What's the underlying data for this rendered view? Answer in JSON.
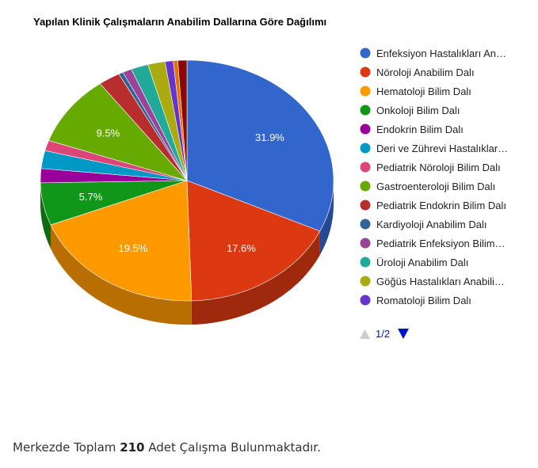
{
  "chart_data": {
    "type": "pie",
    "title": "Yapılan Klinik Çalışmaların Anabilim Dallarına Göre Dağılımı",
    "is3d": true,
    "legend_position": "right",
    "slices": [
      {
        "label": "Enfeksiyon Hastalıkları An…",
        "value": 31.9,
        "color": "#3366cc",
        "data_label": "31.9%"
      },
      {
        "label": "Nöroloji Anabilim Dalı",
        "value": 17.6,
        "color": "#dc3912",
        "data_label": "17.6%"
      },
      {
        "label": "Hematoloji Bilim Dalı",
        "value": 19.5,
        "color": "#ff9900",
        "data_label": "19.5%"
      },
      {
        "label": "Onkoloji Bilim Dalı",
        "value": 5.7,
        "color": "#109618",
        "data_label": "5.7%"
      },
      {
        "label": "Endokrin Bilim Dalı",
        "value": 1.9,
        "color": "#990099",
        "data_label": ""
      },
      {
        "label": "Deri ve Zührevi Hastalıklar…",
        "value": 2.4,
        "color": "#0099c6",
        "data_label": ""
      },
      {
        "label": "Pediatrik Nöroloji Bilim Dalı",
        "value": 1.4,
        "color": "#dd4477",
        "data_label": ""
      },
      {
        "label": "Gastroenteroloji Bilim Dalı",
        "value": 9.5,
        "color": "#66aa00",
        "data_label": "9.5%"
      },
      {
        "label": "Pediatrik Endokrin Bilim Dalı",
        "value": 2.4,
        "color": "#b82e2e",
        "data_label": ""
      },
      {
        "label": "Kardiyoloji Anabilim Dalı",
        "value": 0.5,
        "color": "#316395",
        "data_label": ""
      },
      {
        "label": "Pediatrik Enfeksiyon Bilim…",
        "value": 1.0,
        "color": "#994499",
        "data_label": ""
      },
      {
        "label": "Üroloji Anabilim Dalı",
        "value": 1.9,
        "color": "#22aa99",
        "data_label": ""
      },
      {
        "label": "Göğüs Hastalıkları Anabili…",
        "value": 1.9,
        "color": "#aaaa11",
        "data_label": ""
      },
      {
        "label": "Romatoloji Bilim Dalı",
        "value": 0.9,
        "color": "#6633cc",
        "data_label": ""
      },
      {
        "label": "",
        "value": 0.5,
        "color": "#e67300",
        "data_label": ""
      },
      {
        "label": "",
        "value": 1.0,
        "color": "#8b0707",
        "data_label": ""
      }
    ],
    "legend_items_shown": 14,
    "pager": "1/2"
  },
  "footer": {
    "prefix": "Merkezde Toplam",
    "count": "210",
    "suffix": "Adet Çalışma Bulunmaktadır."
  }
}
